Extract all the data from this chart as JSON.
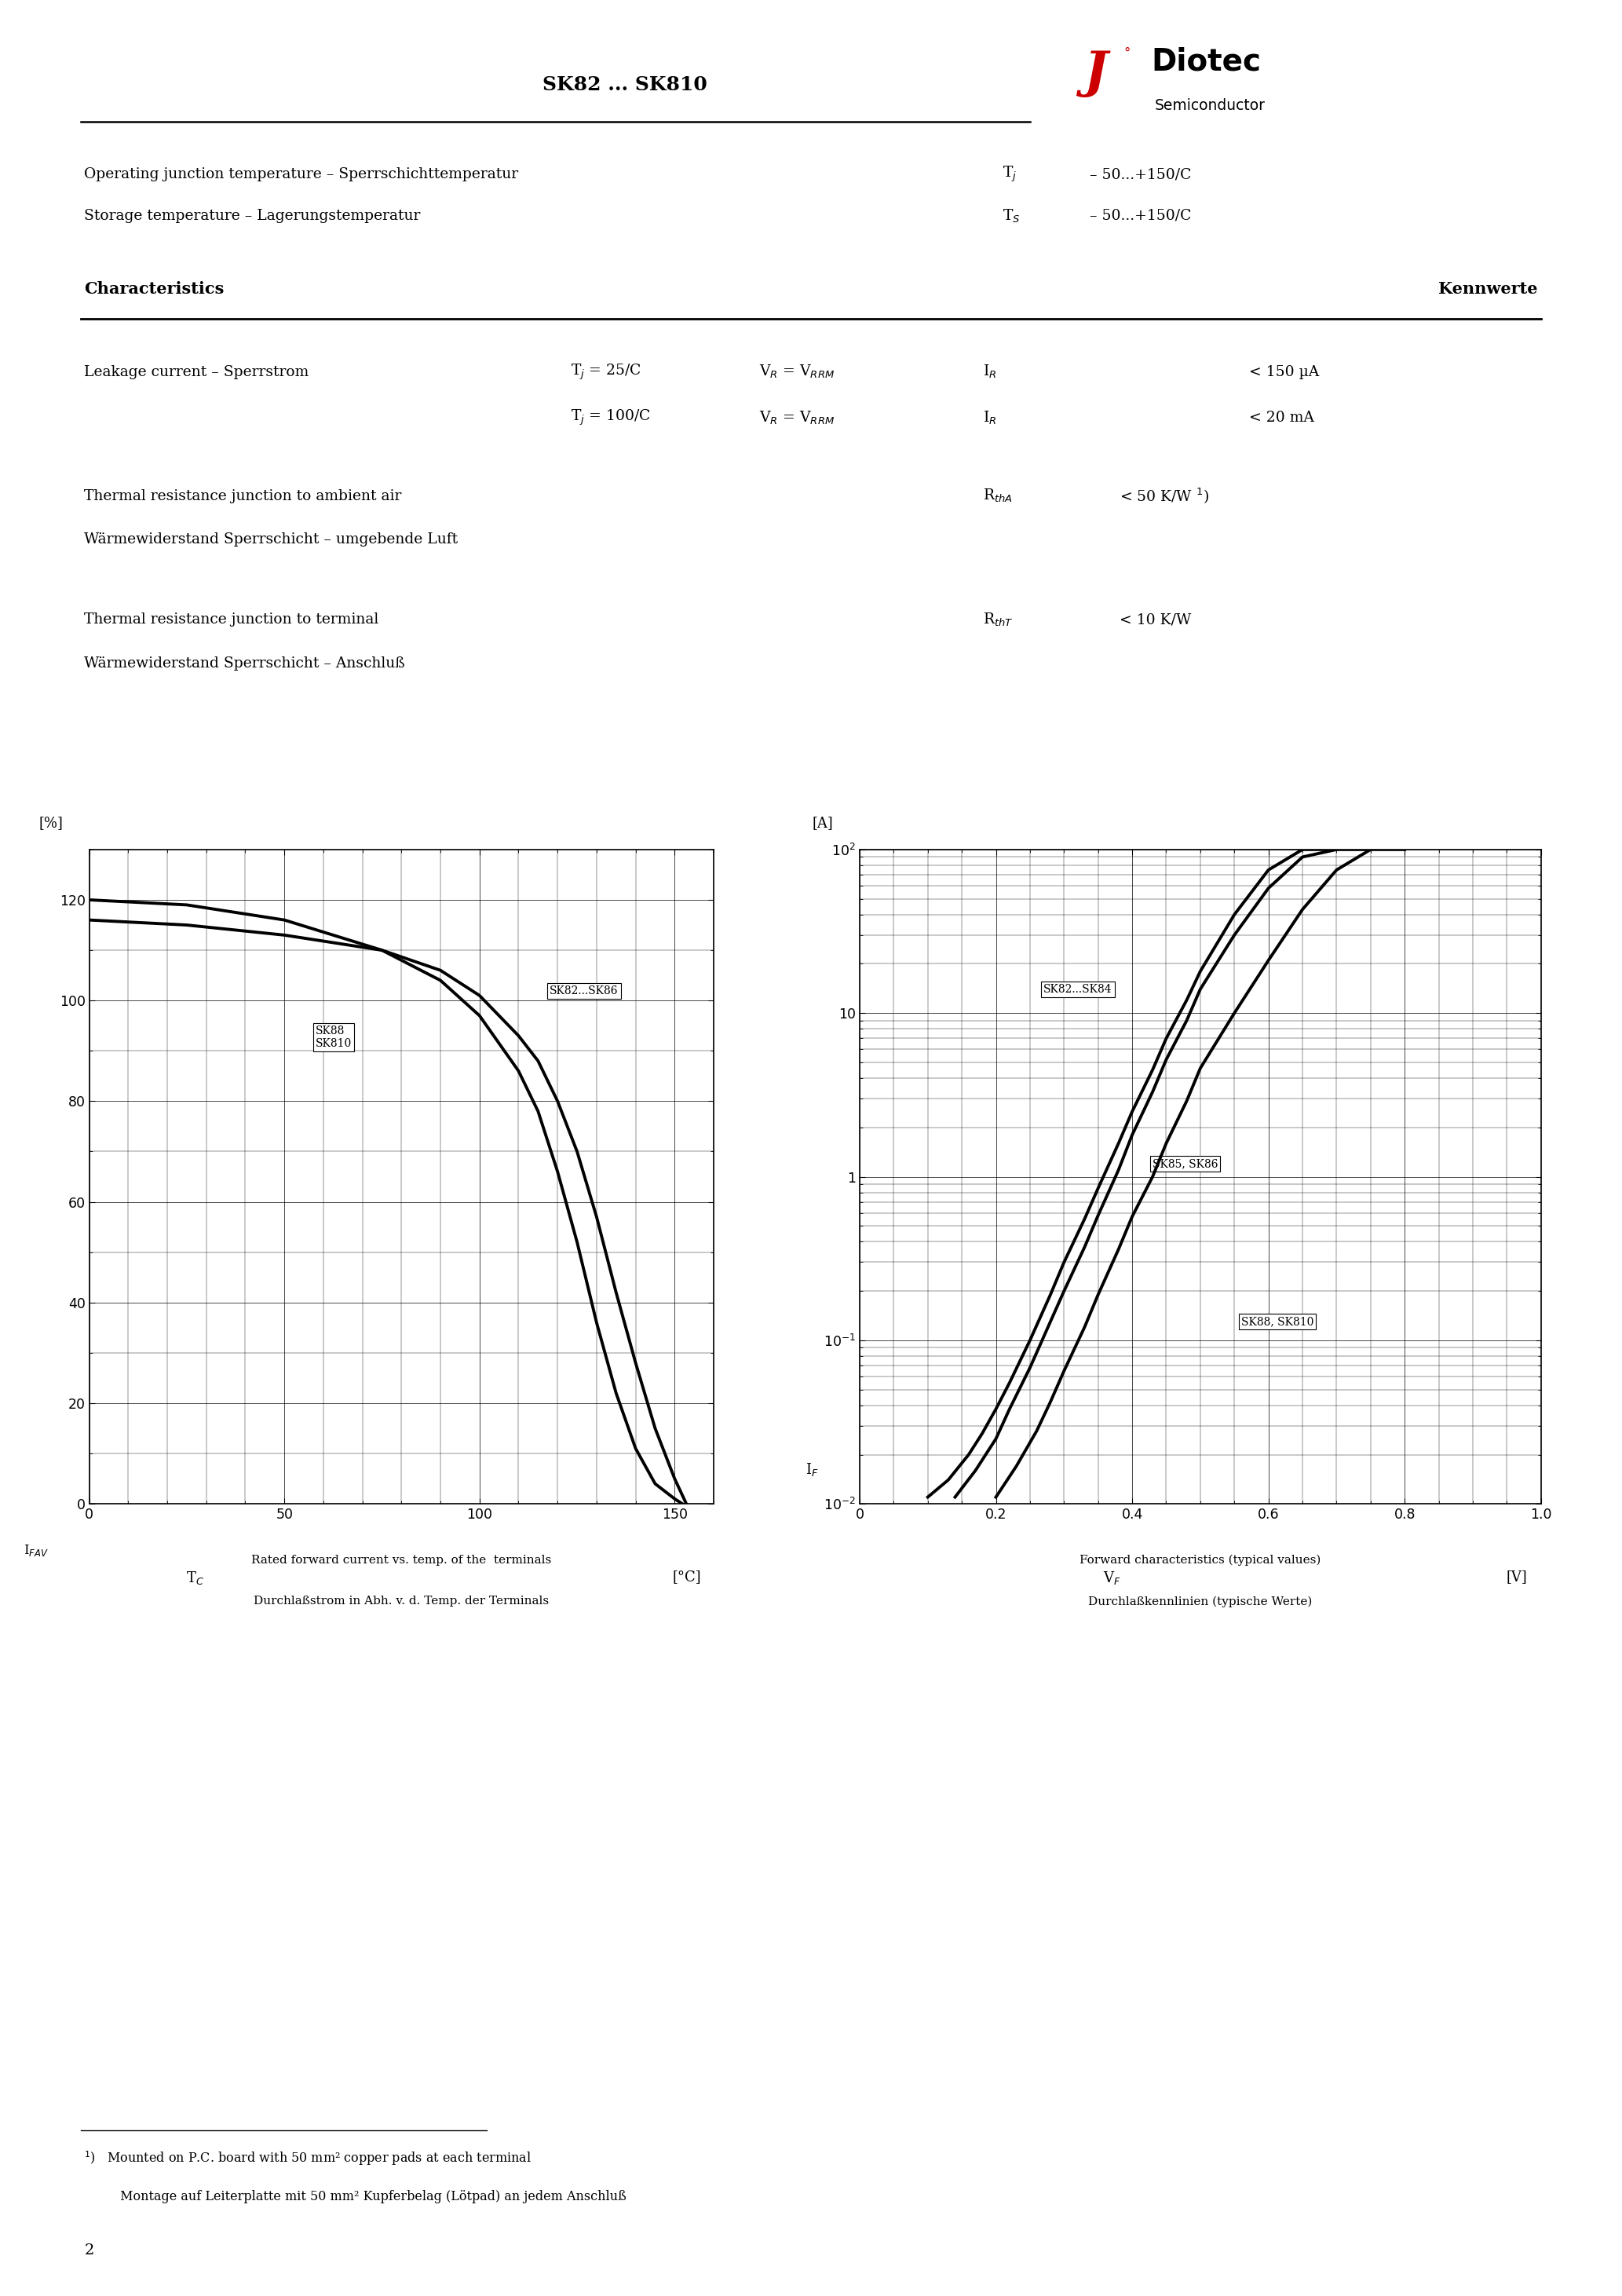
{
  "title": "SK82 ... SK810",
  "page_number": "2",
  "temp_params": [
    {
      "label_en": "Operating junction temperature – Sperrschichttemperatur",
      "symbol": "T_j",
      "sub": "j",
      "value": "– 50...+150/C"
    },
    {
      "label_en": "Storage temperature – Lagerungstemperatur",
      "symbol": "T_S",
      "sub": "S",
      "value": "– 50...+150/C"
    }
  ],
  "char_header": "Characteristics",
  "kennwerte_header": "Kennwerte",
  "leakage_label": "Leakage current – Sperrstrom",
  "leakage_rows": [
    {
      "cond": "T$_j$ = 25/C",
      "vr": "V$_R$ = V$_{RRM}$",
      "sym": "I$_R$",
      "val": "< 150 µA"
    },
    {
      "cond": "T$_j$ = 100/C",
      "vr": "V$_R$ = V$_{RRM}$",
      "sym": "I$_R$",
      "val": "< 20 mA"
    }
  ],
  "rtha_en": "Thermal resistance junction to ambient air",
  "rtha_de": "Wärmewiderstand Sperrschicht – umgebende Luft",
  "rtha_sym": "R$_{thA}$",
  "rtha_val": "< 50 K/W $^1$)",
  "rtht_en": "Thermal resistance junction to terminal",
  "rtht_de": "Wärmewiderstand Sperrschicht – Anschluß",
  "rtht_sym": "R$_{thT}$",
  "rtht_val": "< 10 K/W",
  "footnote_line1": "$^1$)   Mounted on P.C. board with 50 mm² copper pads at each terminal",
  "footnote_line2": "         Montage auf Leiterplatte mit 50 mm² Kupferbelag (Lötpad) an jedem Anschluß",
  "c1_title_en": "Rated forward current vs. temp. of the  terminals",
  "c1_title_de": "Durchlaßstrom in Abh. v. d. Temp. der Terminals",
  "c2_title_en": "Forward characteristics (typical values)",
  "c2_title_de": "Durchlaßkennlinien (typische Werte)"
}
